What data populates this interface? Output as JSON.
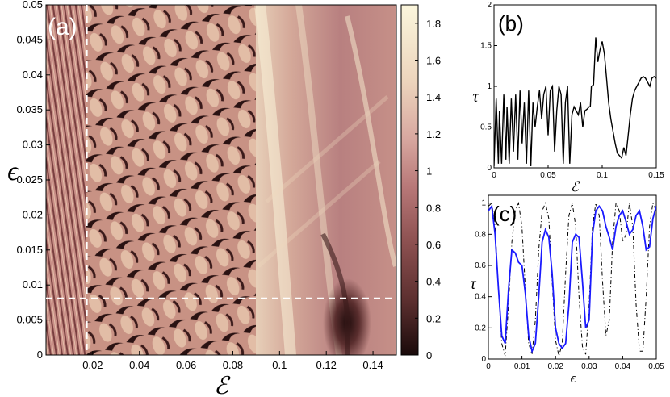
{
  "chart_data": [
    {
      "id": "a",
      "type": "heatmap",
      "panel_label": "(a)",
      "xlabel": "ℰ",
      "ylabel": "ϵ",
      "xlim": [
        0.0,
        0.15
      ],
      "ylim": [
        0,
        0.05
      ],
      "xticks": [
        "0.02",
        "0.04",
        "0.06",
        "0.08",
        "0.1",
        "0.12",
        "0.14"
      ],
      "yticks": [
        "0",
        "0.005",
        "0.01",
        "0.015",
        "0.02",
        "0.025",
        "0.03",
        "0.035",
        "0.04",
        "0.045",
        "0.05"
      ],
      "colorbar": {
        "range": [
          0,
          1.9
        ],
        "ticks": [
          "0",
          "0.2",
          "0.4",
          "0.6",
          "0.8",
          "1",
          "1.2",
          "1.4",
          "1.6",
          "1.8"
        ],
        "colormap": [
          "#1a0a0a",
          "#5a2e2e",
          "#8c5050",
          "#b87878",
          "#d8a8a0",
          "#ecd4bc",
          "#fbf6dc"
        ]
      },
      "cut_lines": {
        "vertical_x": 0.0175,
        "horizontal_y": 0.0081,
        "color": "#ffffff",
        "style": "dashed"
      },
      "regions": [
        {
          "x_range": [
            0.0,
            0.0175
          ],
          "description_values": "fine striped resonances, mean ~0.8"
        },
        {
          "x_range": [
            0.0175,
            0.09
          ],
          "description_values": "diagonal lobes, values 0.1-1.0"
        },
        {
          "x_range": [
            0.09,
            0.15
          ],
          "description_values": "smooth band, values 0.3-1.8, dark dip near (0.128, 0.002)"
        }
      ]
    },
    {
      "id": "b",
      "type": "line",
      "panel_label": "(b)",
      "xlabel": "ℰ",
      "ylabel": "τ",
      "xlim": [
        0,
        0.15
      ],
      "ylim": [
        0,
        2
      ],
      "xticks": [
        "0",
        "0.05",
        "0.1",
        "0.15"
      ],
      "yticks": [
        "0",
        "0.5",
        "1",
        "1.5",
        "2"
      ],
      "series": [
        {
          "color": "#000000",
          "x": [
            0.0,
            0.002,
            0.004,
            0.005,
            0.007,
            0.009,
            0.011,
            0.012,
            0.014,
            0.016,
            0.018,
            0.02,
            0.022,
            0.024,
            0.026,
            0.028,
            0.03,
            0.032,
            0.034,
            0.036,
            0.038,
            0.04,
            0.042,
            0.044,
            0.046,
            0.048,
            0.05,
            0.052,
            0.054,
            0.056,
            0.058,
            0.06,
            0.062,
            0.064,
            0.066,
            0.068,
            0.07,
            0.072,
            0.074,
            0.076,
            0.078,
            0.08,
            0.082,
            0.084,
            0.086,
            0.088,
            0.089,
            0.09,
            0.092,
            0.094,
            0.096,
            0.098,
            0.1,
            0.102,
            0.104,
            0.106,
            0.108,
            0.11,
            0.112,
            0.114,
            0.116,
            0.118,
            0.12,
            0.122,
            0.124,
            0.126,
            0.128,
            0.13,
            0.132,
            0.134,
            0.136,
            0.138,
            0.14,
            0.142,
            0.144,
            0.146,
            0.148,
            0.15
          ],
          "values": [
            0.02,
            0.85,
            0.05,
            0.7,
            0.05,
            0.9,
            0.1,
            0.75,
            0.05,
            0.85,
            0.2,
            0.9,
            0.1,
            0.95,
            0.3,
            0.8,
            0.05,
            0.95,
            0.02,
            0.8,
            0.5,
            0.75,
            0.95,
            0.6,
            0.9,
            1.0,
            0.4,
            0.95,
            1.0,
            0.2,
            0.7,
            1.0,
            0.9,
            0.05,
            0.8,
            1.0,
            0.05,
            0.65,
            0.75,
            0.7,
            0.65,
            0.8,
            0.5,
            0.7,
            0.72,
            0.75,
            0.75,
            1.0,
            1.02,
            1.6,
            1.3,
            1.45,
            1.55,
            1.4,
            1.1,
            0.8,
            0.6,
            0.45,
            0.3,
            0.18,
            0.15,
            0.12,
            0.25,
            0.15,
            0.4,
            0.65,
            0.85,
            0.95,
            1.0,
            1.05,
            1.1,
            1.12,
            1.1,
            1.05,
            1.0,
            1.1,
            1.12,
            1.1
          ]
        }
      ]
    },
    {
      "id": "c",
      "type": "line",
      "panel_label": "(c)",
      "xlabel": "ϵ",
      "ylabel": "τ",
      "xlim": [
        0,
        0.05
      ],
      "ylim": [
        0,
        1.05
      ],
      "xticks": [
        "0",
        "0.01",
        "0.02",
        "0.03",
        "0.04",
        "0.05"
      ],
      "yticks": [
        "0",
        "0.2",
        "0.4",
        "0.6",
        "0.8",
        "1"
      ],
      "series": [
        {
          "color": "#1a1aff",
          "style": "solid",
          "x": [
            0.0,
            0.001,
            0.002,
            0.003,
            0.004,
            0.005,
            0.006,
            0.007,
            0.008,
            0.009,
            0.01,
            0.011,
            0.012,
            0.013,
            0.014,
            0.015,
            0.016,
            0.017,
            0.018,
            0.019,
            0.02,
            0.021,
            0.022,
            0.023,
            0.024,
            0.025,
            0.026,
            0.027,
            0.028,
            0.029,
            0.03,
            0.031,
            0.032,
            0.033,
            0.034,
            0.035,
            0.036,
            0.037,
            0.038,
            0.039,
            0.04,
            0.041,
            0.042,
            0.043,
            0.044,
            0.045,
            0.046,
            0.047,
            0.048,
            0.049,
            0.05
          ],
          "values": [
            0.95,
            0.98,
            0.8,
            0.45,
            0.15,
            0.1,
            0.45,
            0.7,
            0.68,
            0.62,
            0.6,
            0.42,
            0.15,
            0.05,
            0.1,
            0.4,
            0.75,
            0.83,
            0.78,
            0.55,
            0.2,
            0.1,
            0.07,
            0.1,
            0.35,
            0.75,
            0.8,
            0.78,
            0.5,
            0.2,
            0.25,
            0.8,
            0.95,
            0.98,
            0.95,
            0.85,
            0.78,
            0.7,
            0.85,
            0.92,
            0.95,
            0.88,
            0.8,
            0.83,
            0.92,
            0.95,
            0.85,
            0.7,
            0.72,
            0.9,
            0.98
          ]
        },
        {
          "color": "#000000",
          "style": "dash-dot",
          "x": [
            0.0,
            0.001,
            0.002,
            0.003,
            0.004,
            0.005,
            0.006,
            0.007,
            0.008,
            0.009,
            0.01,
            0.011,
            0.012,
            0.013,
            0.014,
            0.015,
            0.016,
            0.017,
            0.018,
            0.019,
            0.02,
            0.021,
            0.022,
            0.023,
            0.024,
            0.025,
            0.026,
            0.027,
            0.028,
            0.029,
            0.03,
            0.031,
            0.032,
            0.033,
            0.034,
            0.035,
            0.036,
            0.037,
            0.038,
            0.039,
            0.04,
            0.041,
            0.042,
            0.043,
            0.044,
            0.045,
            0.046,
            0.047,
            0.048,
            0.049,
            0.05
          ],
          "values": [
            0.98,
            1.0,
            0.85,
            0.45,
            0.1,
            0.02,
            0.35,
            0.75,
            0.95,
            1.0,
            0.85,
            0.45,
            0.1,
            0.03,
            0.25,
            0.7,
            0.95,
            1.0,
            0.9,
            0.5,
            0.12,
            0.02,
            0.1,
            0.55,
            0.92,
            1.0,
            0.85,
            0.4,
            0.08,
            0.03,
            0.35,
            0.85,
            1.0,
            0.92,
            0.5,
            0.15,
            0.25,
            0.75,
            1.0,
            0.95,
            0.75,
            0.8,
            1.0,
            0.85,
            0.35,
            0.05,
            0.05,
            0.4,
            0.85,
            1.0,
            0.95
          ]
        }
      ]
    }
  ]
}
